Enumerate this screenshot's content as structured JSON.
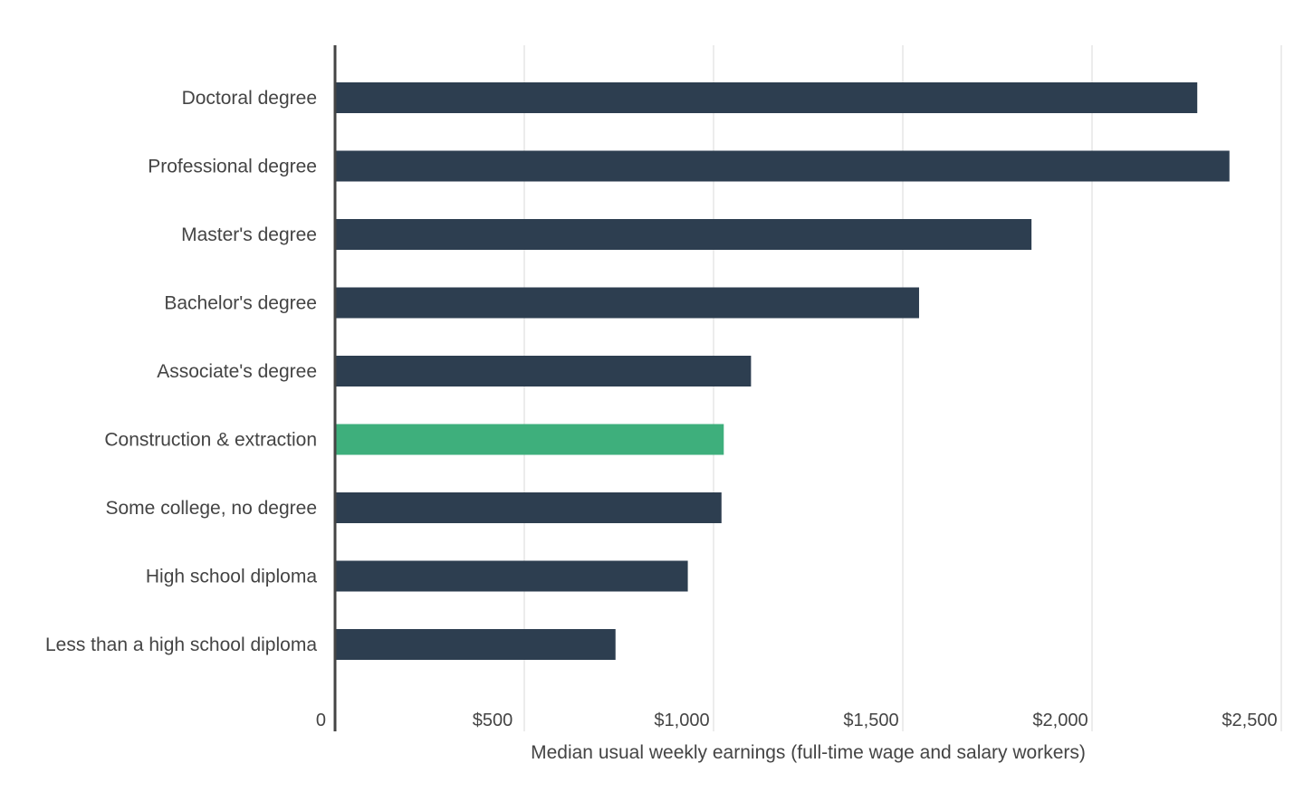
{
  "chart_data": {
    "type": "bar",
    "orientation": "horizontal",
    "categories": [
      "Doctoral degree",
      "Professional degree",
      "Master's degree",
      "Bachelor's degree",
      "Associate's degree",
      "Construction & extraction",
      "Some college, no degree",
      "High school diploma",
      "Less than a high school diploma"
    ],
    "values": [
      2278,
      2363,
      1840,
      1543,
      1099,
      1027,
      1021,
      932,
      741
    ],
    "highlight_category": "Construction & extraction",
    "colors": {
      "default_bar": "#2d3e50",
      "highlight_bar": "#3eaf7c",
      "axis_line": "#444444",
      "grid": "#e6e6e6",
      "text": "#444444"
    },
    "title": "",
    "xlabel": "Median usual weekly earnings (full-time wage and salary workers)",
    "ylabel": "",
    "xlim": [
      0,
      2500
    ],
    "x_ticks": [
      0,
      500,
      1000,
      1500,
      2000,
      2500
    ],
    "x_tick_labels": [
      "0",
      "$500",
      "$1,000",
      "$1,500",
      "$2,000",
      "$2,500"
    ],
    "grid": "vertical",
    "legend": "none"
  }
}
